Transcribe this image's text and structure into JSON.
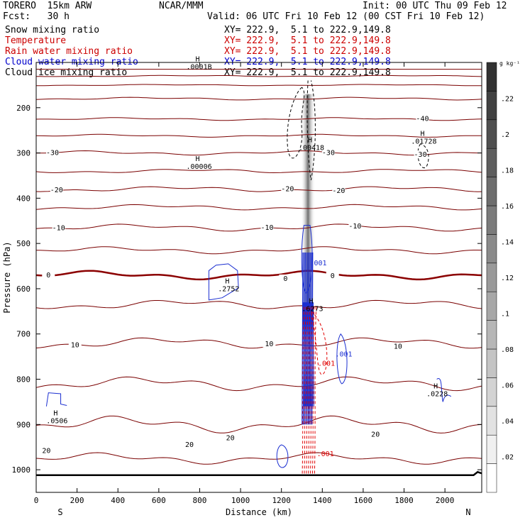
{
  "header": {
    "model": "TORERO  15km ARW",
    "center": "NCAR/MMM",
    "init": "Init: 00 UTC Thu 09 Feb 12",
    "fcst": "Fcst:   30 h",
    "valid": "Valid: 06 UTC Fri 10 Feb 12 (00 CST Fri 10 Feb 12)"
  },
  "legend": [
    {
      "name": "Snow mixing ratio",
      "xy": "XY= 222.9,  5.1 to 222.9,149.8",
      "color": "#000000"
    },
    {
      "name": "Temperature",
      "xy": "XY= 222.9,  5.1 to 222.9,149.8",
      "color": "#cc0000"
    },
    {
      "name": "Rain water mixing ratio",
      "xy": "XY= 222.9,  5.1 to 222.9,149.8",
      "color": "#cc0000"
    },
    {
      "name": "Cloud water mixing ratio",
      "xy": "XY= 222.9,  5.1 to 222.9,149.8",
      "color": "#0000cc"
    },
    {
      "name": "Cloud ice mixing ratio",
      "xy": "XY= 222.9,  5.1 to 222.9,149.8",
      "color": "#000000"
    }
  ],
  "chart_data": {
    "type": "contour-cross-section",
    "xlabel": "Distance (km)",
    "ylabel": "Pressure (hPa)",
    "xlim": [
      0,
      2180
    ],
    "ylim": [
      1050,
      100
    ],
    "x_ticks": [
      0,
      200,
      400,
      600,
      800,
      1000,
      1200,
      1400,
      1600,
      1800,
      2000
    ],
    "y_ticks": [
      200,
      300,
      400,
      500,
      600,
      700,
      800,
      900,
      1000
    ],
    "end_labels": {
      "left": "S",
      "right": "N"
    },
    "colorbar": {
      "unit": "g kg⁻¹",
      "ticks": [
        ".02",
        ".04",
        ".06",
        ".08",
        ".1",
        ".12",
        ".14",
        ".16",
        ".18",
        ".2",
        ".22"
      ],
      "levels": 15
    },
    "temperature": {
      "color": "#7a0000",
      "zero_color": "#8b0000",
      "interval": 5,
      "isotherms": [
        {
          "t": -60,
          "p": 115,
          "amp": 0,
          "phase": 0.0
        },
        {
          "t": -55,
          "p": 130,
          "amp": 1,
          "phase": 0.4
        },
        {
          "t": -50,
          "p": 150,
          "amp": 1,
          "phase": 1.0
        },
        {
          "t": -45,
          "p": 180,
          "amp": 2,
          "phase": 1.6
        },
        {
          "t": -40,
          "p": 225,
          "amp": 2,
          "phase": 2.2
        },
        {
          "t": -35,
          "p": 262,
          "amp": 2,
          "phase": 2.8
        },
        {
          "t": -30,
          "p": 300,
          "amp": 3,
          "phase": 3.4
        },
        {
          "t": -25,
          "p": 340,
          "amp": 3,
          "phase": 0.2
        },
        {
          "t": -20,
          "p": 380,
          "amp": 4,
          "phase": 0.8
        },
        {
          "t": -15,
          "p": 420,
          "amp": 4,
          "phase": 1.4
        },
        {
          "t": -10,
          "p": 465,
          "amp": 5,
          "phase": 2.0
        },
        {
          "t": -5,
          "p": 515,
          "amp": 5,
          "phase": 2.6
        },
        {
          "t": 0,
          "p": 570,
          "amp": 6,
          "phase": 3.2
        },
        {
          "t": 5,
          "p": 635,
          "amp": 7,
          "phase": 0.5
        },
        {
          "t": 10,
          "p": 720,
          "amp": 8,
          "phase": 1.1
        },
        {
          "t": 15,
          "p": 810,
          "amp": 10,
          "phase": 1.7
        },
        {
          "t": 20,
          "p": 900,
          "amp": 12,
          "phase": 2.3
        },
        {
          "t": 25,
          "p": 975,
          "amp": 8,
          "phase": 2.9
        }
      ],
      "labels": [
        {
          "text": "-40",
          "x": 1890,
          "p": 225
        },
        {
          "text": "-30",
          "x": 80,
          "p": 300
        },
        {
          "text": "-30",
          "x": 1430,
          "p": 300
        },
        {
          "text": "-30",
          "x": 1880,
          "p": 304
        },
        {
          "text": "-20",
          "x": 100,
          "p": 382
        },
        {
          "text": "-20",
          "x": 1230,
          "p": 380
        },
        {
          "text": "-20",
          "x": 1480,
          "p": 384
        },
        {
          "text": "-10",
          "x": 110,
          "p": 466
        },
        {
          "text": "-10",
          "x": 1130,
          "p": 465
        },
        {
          "text": "-10",
          "x": 1560,
          "p": 462
        },
        {
          "text": "0",
          "x": 60,
          "p": 570
        },
        {
          "text": "0",
          "x": 1220,
          "p": 578
        },
        {
          "text": "0",
          "x": 1450,
          "p": 572
        },
        {
          "text": "10",
          "x": 190,
          "p": 725
        },
        {
          "text": "10",
          "x": 1140,
          "p": 722
        },
        {
          "text": "10",
          "x": 1770,
          "p": 728
        },
        {
          "text": "20",
          "x": 50,
          "p": 958
        },
        {
          "text": "20",
          "x": 750,
          "p": 945
        },
        {
          "text": "20",
          "x": 950,
          "p": 930
        },
        {
          "text": "20",
          "x": 1660,
          "p": 922
        }
      ]
    },
    "highs": [
      {
        "label": "H",
        "value": ".0001B",
        "x": 790,
        "p": 98
      },
      {
        "label": "H",
        "value": ".00006",
        "x": 790,
        "p": 318
      },
      {
        "label": "H",
        "value": ".00418",
        "x": 1340,
        "p": 276
      },
      {
        "label": "H",
        "value": ".01728",
        "x": 1890,
        "p": 262
      },
      {
        "label": "H",
        "value": ".2752",
        "x": 935,
        "p": 588
      },
      {
        "label": "H",
        "value": ".6273",
        "x": 1345,
        "p": 632
      },
      {
        "label": "H",
        "value": ".0228",
        "x": 1955,
        "p": 820
      },
      {
        "label": "H",
        "value": ".0506",
        "x": 95,
        "p": 880
      }
    ],
    "cloud_water_labels": [
      {
        "text": ".001",
        "x": 1380,
        "p": 548
      },
      {
        "text": ".001",
        "x": 1505,
        "p": 750
      }
    ],
    "rain_labels": [
      {
        "text": ".001",
        "x": 1420,
        "p": 770
      },
      {
        "text": ".001",
        "x": 1415,
        "p": 970
      }
    ],
    "snow_shading": {
      "x_center": 1330,
      "p_top": 170,
      "p_bottom": 680,
      "max_g_per_kg": 0.2
    },
    "terrain": {
      "p_surface": 1012
    }
  }
}
